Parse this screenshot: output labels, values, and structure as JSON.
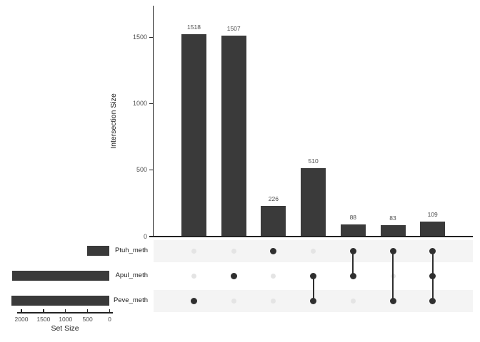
{
  "chart_data": {
    "type": "upset",
    "intersection_chart": {
      "ylabel": "Intersection Size",
      "yticks": [
        0,
        500,
        1000,
        1500
      ],
      "ylim": [
        0,
        1740
      ],
      "grid": false,
      "columns": [
        {
          "value": 1518,
          "sets": [
            "Peve_meth"
          ]
        },
        {
          "value": 1507,
          "sets": [
            "Apul_meth"
          ]
        },
        {
          "value": 226,
          "sets": [
            "Ptuh_meth"
          ]
        },
        {
          "value": 510,
          "sets": [
            "Apul_meth",
            "Peve_meth"
          ]
        },
        {
          "value": 88,
          "sets": [
            "Ptuh_meth",
            "Apul_meth"
          ]
        },
        {
          "value": 83,
          "sets": [
            "Ptuh_meth",
            "Peve_meth"
          ]
        },
        {
          "value": 109,
          "sets": [
            "Ptuh_meth",
            "Apul_meth",
            "Peve_meth"
          ]
        }
      ]
    },
    "matrix": {
      "rows": [
        "Ptuh_meth",
        "Apul_meth",
        "Peve_meth"
      ]
    },
    "set_size_chart": {
      "xlabel": "Set Size",
      "xticks": [
        2000,
        1500,
        1000,
        500,
        0
      ],
      "xlim": [
        2240,
        0
      ],
      "sets": [
        {
          "name": "Ptuh_meth",
          "size": 506
        },
        {
          "name": "Apul_meth",
          "size": 2214
        },
        {
          "name": "Peve_meth",
          "size": 2220
        }
      ]
    },
    "colors": {
      "bar": "#3a3a3a",
      "dot_active": "#2f2f2f",
      "dot_inactive": "#e4e4e4",
      "stripe": "#f4f4f4",
      "axis_line": "#222222",
      "tick_text": "#4d4d4d",
      "label_text": "#1a1a1a",
      "background": "#ffffff"
    }
  }
}
